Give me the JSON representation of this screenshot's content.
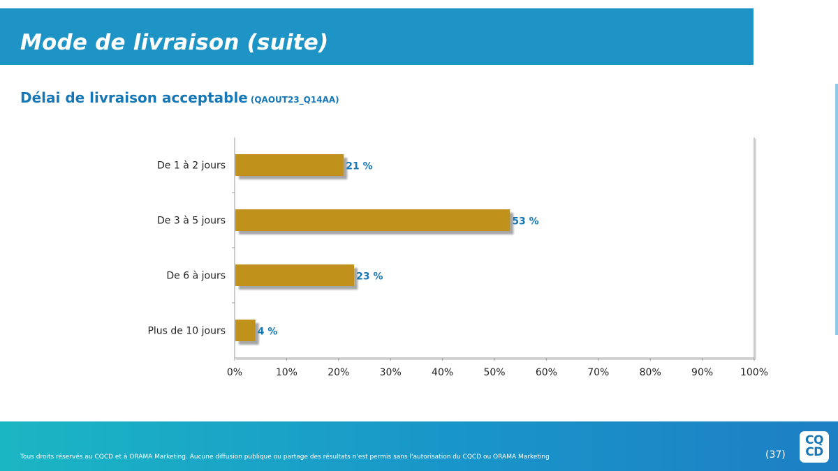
{
  "header": {
    "title": "Mode de livraison (suite)"
  },
  "subtitle": {
    "main": "Délai de livraison acceptable",
    "code": "(QAOUT23_Q14AA)"
  },
  "chart_data": {
    "type": "bar",
    "orientation": "horizontal",
    "title": "Délai de livraison acceptable",
    "categories": [
      "De 1 à 2 jours",
      "De 3 à 5 jours",
      "De 6 à jours",
      "Plus de 10 jours"
    ],
    "values": [
      21,
      53,
      23,
      4
    ],
    "value_labels": [
      "21 %",
      "53 %",
      "23 %",
      "4 %"
    ],
    "xlim": [
      0,
      100
    ],
    "xticks": [
      "0%",
      "10%",
      "20%",
      "30%",
      "40%",
      "50%",
      "60%",
      "70%",
      "80%",
      "90%",
      "100%"
    ],
    "xlabel": "",
    "ylabel": "",
    "bar_color": "#c0921f",
    "label_color": "#1577b5",
    "grid": false
  },
  "footer": {
    "copyright": "Tous droits réservés au CQCD et à ORAMA Marketing. Aucune diffusion publique ou partage des résultats n'est permis sans l'autorisation du CQCD ou ORAMA Marketing",
    "page": "(37)",
    "logo_top": "CQ",
    "logo_bottom": "CD"
  }
}
